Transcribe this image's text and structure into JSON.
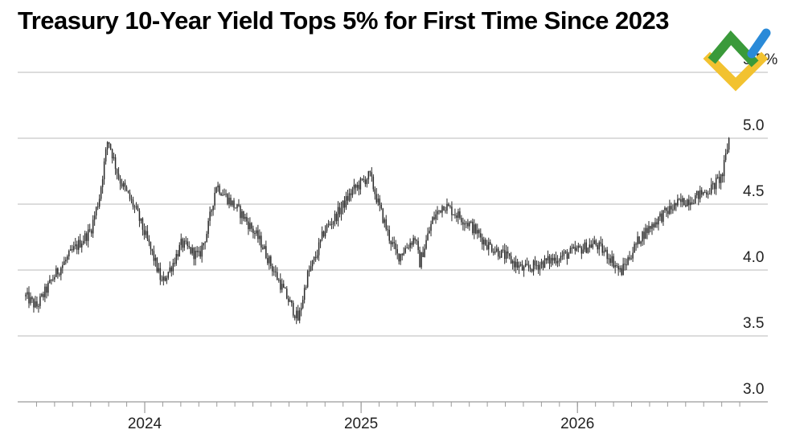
{
  "chart_data": {
    "type": "candlestick",
    "title": "Treasury 10-Year Yield Tops 5% for First Time Since 2023",
    "xlabel": "",
    "ylabel": "",
    "ylim": [
      3.0,
      5.5
    ],
    "y_ticks": [
      {
        "value": 5.5,
        "label": "5.5%"
      },
      {
        "value": 5.0,
        "label": "5.0"
      },
      {
        "value": 4.5,
        "label": "4.5"
      },
      {
        "value": 4.0,
        "label": "4.0"
      },
      {
        "value": 3.5,
        "label": "3.5"
      },
      {
        "value": 3.0,
        "label": "3.0"
      }
    ],
    "x_range": [
      2023.45,
      2026.72
    ],
    "x_ticks": [
      {
        "value": 2024.0,
        "label": "2024"
      },
      {
        "value": 2025.0,
        "label": "2025"
      },
      {
        "value": 2026.0,
        "label": "2026"
      }
    ],
    "grid": true,
    "legend": "none",
    "series": [
      {
        "x": [
          2023.45,
          2023.5,
          2023.58,
          2023.67,
          2023.75,
          2023.79,
          2023.83,
          2023.88,
          2023.96,
          2024.04,
          2024.08,
          2024.13,
          2024.17,
          2024.25,
          2024.29,
          2024.33,
          2024.38,
          2024.46,
          2024.54,
          2024.58,
          2024.67,
          2024.71,
          2024.75,
          2024.79,
          2024.83,
          2024.88,
          2024.96,
          2025.04,
          2025.08,
          2025.13,
          2025.17,
          2025.25,
          2025.27,
          2025.33,
          2025.38,
          2025.42,
          2025.5,
          2025.58,
          2025.67,
          2025.75,
          2025.83,
          2025.92,
          2026.0,
          2026.08,
          2026.15,
          2026.2,
          2026.29,
          2026.38,
          2026.46,
          2026.54,
          2026.62,
          2026.67,
          2026.7
        ],
        "values": [
          3.8,
          3.72,
          3.95,
          4.15,
          4.3,
          4.55,
          5.0,
          4.7,
          4.45,
          4.1,
          3.9,
          4.05,
          4.2,
          4.1,
          4.3,
          4.65,
          4.55,
          4.4,
          4.2,
          4.05,
          3.75,
          3.62,
          3.95,
          4.1,
          4.3,
          4.4,
          4.6,
          4.72,
          4.5,
          4.25,
          4.1,
          4.25,
          4.05,
          4.38,
          4.5,
          4.45,
          4.35,
          4.2,
          4.1,
          4.0,
          4.05,
          4.1,
          4.15,
          4.2,
          4.1,
          3.98,
          4.25,
          4.4,
          4.5,
          4.55,
          4.62,
          4.72,
          5.0
        ]
      }
    ]
  }
}
